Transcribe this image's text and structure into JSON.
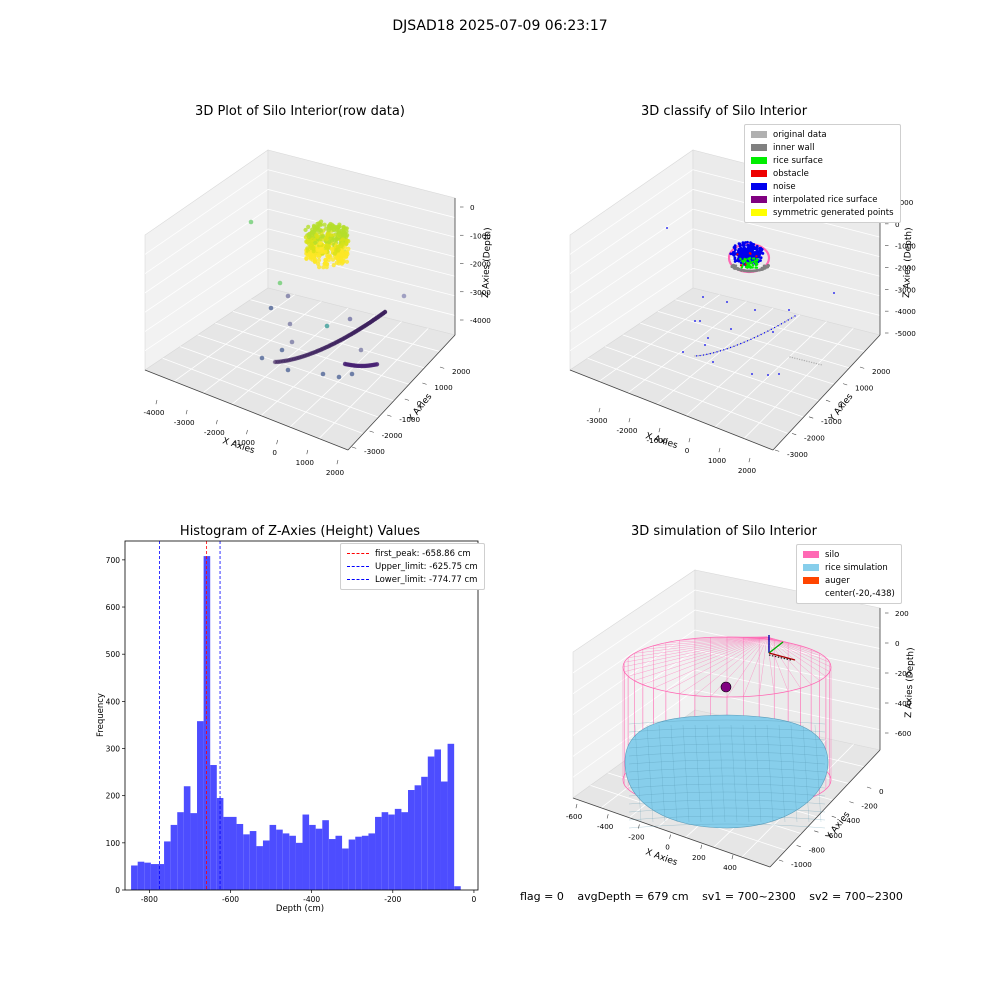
{
  "header": {
    "title": "DJSAD18 2025-07-09 06:23:17"
  },
  "panels": {
    "raw": {
      "title": "3D Plot of Silo Interior(row data)",
      "xlabel": "X Axies",
      "ylabel": "Y Axies",
      "zlabel": "Z Axies (Depth)",
      "xticks": [
        "-4000",
        "-3000",
        "-2000",
        "-1000",
        "0",
        "1000",
        "2000"
      ],
      "yticks": [
        "2000",
        "1000",
        "0",
        "-1000",
        "-2000",
        "-3000"
      ],
      "zticks": [
        "0",
        "-1000",
        "-2000",
        "-3000",
        "-4000"
      ]
    },
    "classify": {
      "title": "3D classify of Silo Interior",
      "xlabel": "X Axies",
      "ylabel": "Y Axies",
      "zlabel": "Z Axies (Depth)",
      "xticks": [
        "-3000",
        "-2000",
        "-1000",
        "0",
        "1000",
        "2000"
      ],
      "yticks": [
        "2000",
        "1000",
        "0",
        "-1000",
        "-2000",
        "-3000"
      ],
      "zticks": [
        "1000",
        "0",
        "-1000",
        "-2000",
        "-3000",
        "-4000",
        "-5000"
      ],
      "legend": [
        {
          "label": "original data",
          "color": "#b0b0b0"
        },
        {
          "label": "inner wall",
          "color": "#808080"
        },
        {
          "label": "rice surface",
          "color": "#00ee00"
        },
        {
          "label": "obstacle",
          "color": "#ee0000"
        },
        {
          "label": "noise",
          "color": "#0000ee"
        },
        {
          "label": "interpolated rice surface",
          "color": "#800080"
        },
        {
          "label": "symmetric generated points",
          "color": "#ffff00"
        }
      ]
    },
    "simulation": {
      "title": "3D simulation of Silo Interior",
      "xlabel": "X Axies",
      "ylabel": "Y Axies",
      "zlabel": "Z Axies (Depth)",
      "xticks": [
        "-600",
        "-400",
        "-200",
        "0",
        "200",
        "400"
      ],
      "yticks": [
        "0",
        "-200",
        "-400",
        "-600",
        "-800",
        "-1000"
      ],
      "zticks": [
        "200",
        "0",
        "-200",
        "-400",
        "-600"
      ],
      "legend": [
        {
          "label": "silo",
          "color": "#ff69b4"
        },
        {
          "label": "rice simulation",
          "color": "#87ceeb"
        },
        {
          "label": "auger",
          "color": "#ff4500"
        },
        {
          "label": "center(-20,-438)",
          "color": ""
        }
      ]
    }
  },
  "stats": {
    "flag": "flag = 0",
    "avg_depth": "avgDepth = 679 cm",
    "sv1": "sv1 = 700~2300",
    "sv2": "sv2 = 700~2300"
  },
  "chart_data": {
    "type": "bar",
    "title": "Histogram of Z-Axies (Height) Values",
    "xlabel": "Depth (cm)",
    "ylabel": "Frequency",
    "xlim": [
      -860,
      10
    ],
    "ylim": [
      0,
      740
    ],
    "xticks": [
      -800,
      -600,
      -400,
      -200,
      0
    ],
    "yticks": [
      0,
      100,
      200,
      300,
      400,
      500,
      600,
      700
    ],
    "bin_start": -845,
    "bin_width": 16.25,
    "values": [
      52,
      60,
      58,
      55,
      55,
      103,
      138,
      165,
      220,
      163,
      358,
      708,
      265,
      195,
      155,
      155,
      140,
      118,
      125,
      93,
      105,
      138,
      128,
      120,
      115,
      100,
      160,
      138,
      130,
      148,
      108,
      115,
      88,
      107,
      113,
      115,
      120,
      155,
      165,
      160,
      172,
      165,
      212,
      222,
      240,
      283,
      298,
      230,
      310,
      8
    ],
    "vlines": [
      {
        "name": "first_peak: -658.86 cm",
        "x": -658.86,
        "color": "#ff0000"
      },
      {
        "name": "Upper_limit: -625.75 cm",
        "x": -625.75,
        "color": "#0000ff"
      },
      {
        "name": "Lower_limit: -774.77 cm",
        "x": -774.77,
        "color": "#0000ff"
      }
    ],
    "bar_color": "#4d4dff",
    "legend_position": "top-right"
  }
}
